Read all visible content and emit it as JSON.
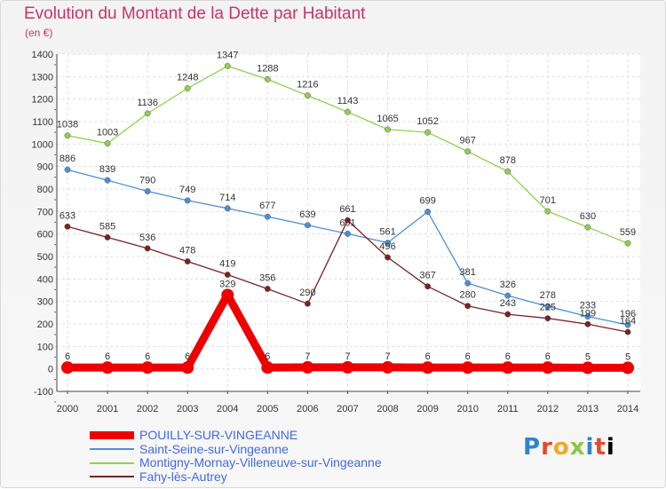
{
  "header": {
    "title": "Evolution du Montant de la Dette par Habitant",
    "subtitle": "(en €)"
  },
  "logo": {
    "text": "Proxiti"
  },
  "chart_data": {
    "type": "line",
    "title": "Evolution du Montant de la Dette par Habitant",
    "subtitle": "(en €)",
    "xlabel": "",
    "ylabel": "",
    "x": [
      2000,
      2001,
      2002,
      2003,
      2004,
      2005,
      2006,
      2007,
      2008,
      2009,
      2010,
      2011,
      2012,
      2013,
      2014
    ],
    "ylim": [
      -100,
      1400
    ],
    "yticks": [
      -100,
      0,
      100,
      200,
      300,
      400,
      500,
      600,
      700,
      800,
      900,
      1000,
      1100,
      1200,
      1300,
      1400
    ],
    "grid": true,
    "legend_position": "bottom-left",
    "series": [
      {
        "name": "POUILLY-SUR-VINGEANNE",
        "color": "#ee0000",
        "emphasis": true,
        "values": [
          6,
          6,
          6,
          6,
          329,
          6,
          7,
          7,
          7,
          6,
          6,
          6,
          6,
          5,
          5
        ]
      },
      {
        "name": "Saint-Seine-sur-Vingeanne",
        "color": "#4a90d9",
        "values": [
          886,
          839,
          790,
          749,
          714,
          677,
          639,
          601,
          561,
          699,
          381,
          326,
          278,
          233,
          196
        ]
      },
      {
        "name": "Montigny-Mornay-Villeneuve-sur-Vingeanne",
        "color": "#8fd14f",
        "values": [
          1038,
          1003,
          1136,
          1248,
          1347,
          1288,
          1216,
          1143,
          1065,
          1052,
          967,
          878,
          701,
          630,
          559
        ]
      },
      {
        "name": "Fahy-lès-Autrey",
        "color": "#7a2222",
        "values": [
          633,
          585,
          536,
          478,
          419,
          356,
          290,
          661,
          496,
          367,
          280,
          243,
          225,
          199,
          164
        ]
      }
    ]
  }
}
